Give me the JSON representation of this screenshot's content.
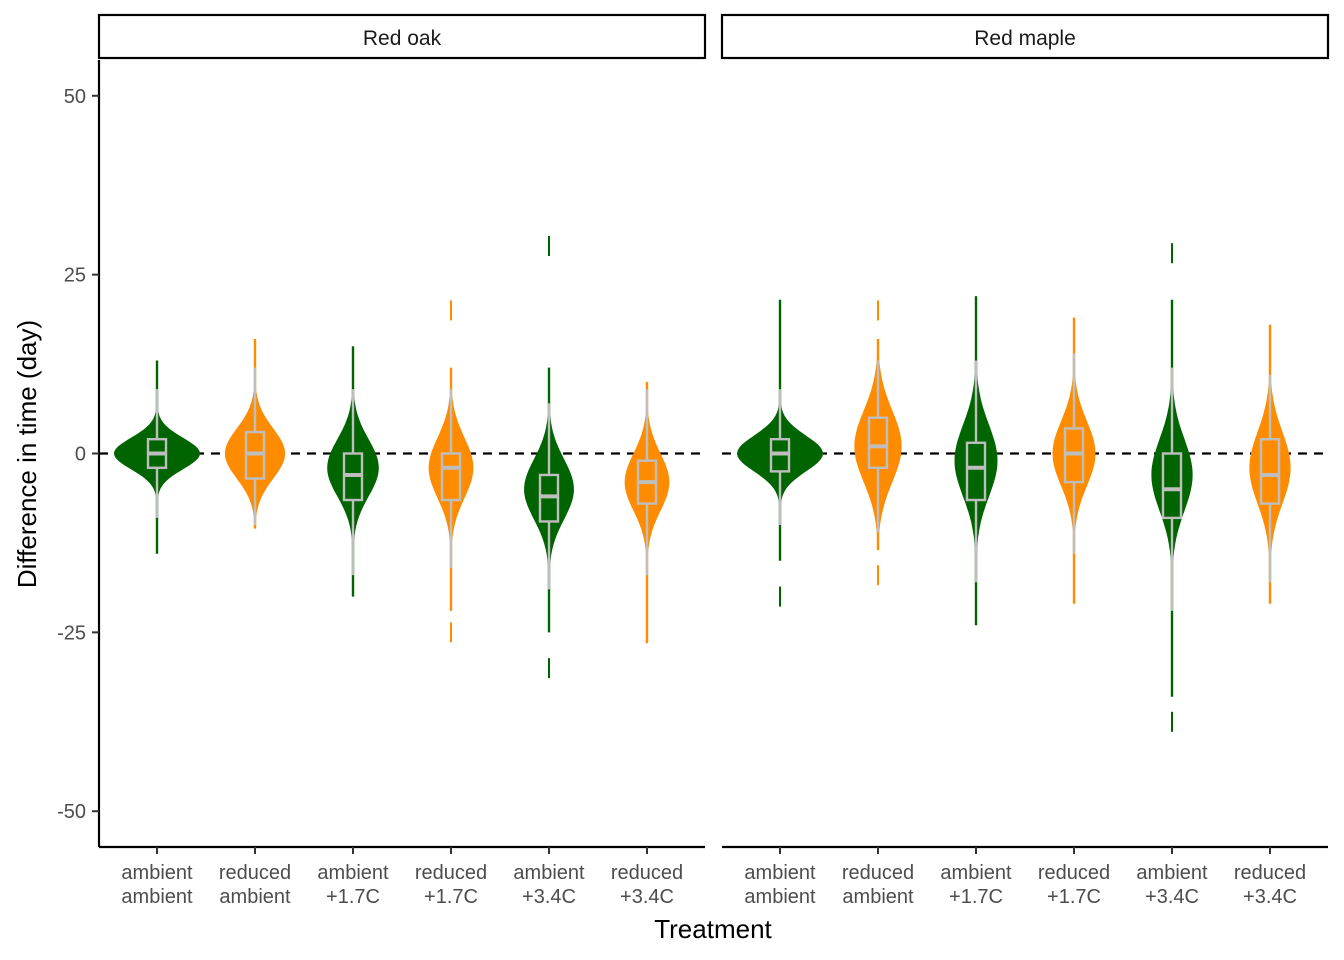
{
  "chart_data": {
    "type": "violin",
    "xlabel": "Treatment",
    "ylabel": "Difference in time (day)",
    "ylim": [
      -55,
      55
    ],
    "yticks": [
      50,
      25,
      0,
      -25,
      -50
    ],
    "reference_line": 0,
    "categories": [
      {
        "line1": "ambient",
        "line2": "ambient"
      },
      {
        "line1": "reduced",
        "line2": "ambient"
      },
      {
        "line1": "ambient",
        "line2": "+1.7C"
      },
      {
        "line1": "reduced",
        "line2": "+1.7C"
      },
      {
        "line1": "ambient",
        "line2": "+3.4C"
      },
      {
        "line1": "reduced",
        "line2": "+3.4C"
      }
    ],
    "colors": {
      "ambient": "#006400",
      "reduced": "#ff8c00",
      "box": "#bebebe"
    },
    "panels": [
      {
        "title": "Red oak",
        "groups": [
          {
            "fill": "ambient",
            "min": -14,
            "max": 13,
            "q1": -2,
            "median": 0,
            "q3": 2,
            "whisker_low": -9,
            "whisker_high": 9,
            "mode": 0,
            "width": 1.0,
            "spread": 2.2,
            "outliers": []
          },
          {
            "fill": "reduced",
            "min": -10.5,
            "max": 16,
            "q1": -3.5,
            "median": 0,
            "q3": 3,
            "whisker_low": -10,
            "whisker_high": 12,
            "mode": 0,
            "width": 0.7,
            "spread": 3.5,
            "outliers": []
          },
          {
            "fill": "ambient",
            "min": -20,
            "max": 15,
            "q1": -6.5,
            "median": -3,
            "q3": 0,
            "whisker_low": -17,
            "whisker_high": 9,
            "mode": -2,
            "width": 0.6,
            "spread": 4.0,
            "outliers": []
          },
          {
            "fill": "reduced",
            "min": -22,
            "max": 12,
            "q1": -6.5,
            "median": -2,
            "q3": 0,
            "whisker_low": -16,
            "whisker_high": 9,
            "mode": -2,
            "width": 0.52,
            "spread": 4.2,
            "outliers": [
              20,
              -25
            ]
          },
          {
            "fill": "ambient",
            "min": -25,
            "max": 12,
            "q1": -9.5,
            "median": -6,
            "q3": -3,
            "whisker_low": -19,
            "whisker_high": 7,
            "mode": -5,
            "width": 0.58,
            "spread": 4.2,
            "outliers": [
              29,
              -30
            ]
          },
          {
            "fill": "reduced",
            "min": -26.5,
            "max": 10,
            "q1": -7,
            "median": -4,
            "q3": -1,
            "whisker_low": -17,
            "whisker_high": 9,
            "mode": -4,
            "width": 0.52,
            "spread": 4.0,
            "outliers": []
          }
        ]
      },
      {
        "title": "Red maple",
        "groups": [
          {
            "fill": "ambient",
            "min": -15,
            "max": 21.5,
            "q1": -2.5,
            "median": 0,
            "q3": 2,
            "whisker_low": -10,
            "whisker_high": 9,
            "mode": 0,
            "width": 1.0,
            "spread": 2.5,
            "outliers": [
              -20
            ]
          },
          {
            "fill": "reduced",
            "min": -13.5,
            "max": 16,
            "q1": -2,
            "median": 1,
            "q3": 5,
            "whisker_low": -11,
            "whisker_high": 13,
            "mode": 1,
            "width": 0.55,
            "spread": 5.0,
            "outliers": [
              20,
              -17
            ]
          },
          {
            "fill": "ambient",
            "min": -24,
            "max": 22,
            "q1": -6.5,
            "median": -2,
            "q3": 1.5,
            "whisker_low": -18,
            "whisker_high": 13,
            "mode": -1,
            "width": 0.5,
            "spread": 5.0,
            "outliers": []
          },
          {
            "fill": "reduced",
            "min": -21,
            "max": 19,
            "q1": -4,
            "median": 0,
            "q3": 3.5,
            "whisker_low": -14,
            "whisker_high": 14,
            "mode": 0,
            "width": 0.5,
            "spread": 4.5,
            "outliers": []
          },
          {
            "fill": "ambient",
            "min": -34,
            "max": 21.5,
            "q1": -9,
            "median": -5,
            "q3": 0,
            "whisker_low": -22,
            "whisker_high": 12,
            "mode": -3,
            "width": 0.48,
            "spread": 5.0,
            "outliers": [
              28,
              -37.5
            ]
          },
          {
            "fill": "reduced",
            "min": -21,
            "max": 18,
            "q1": -7,
            "median": -3,
            "q3": 2,
            "whisker_low": -18,
            "whisker_high": 11,
            "mode": -2,
            "width": 0.48,
            "spread": 5.0,
            "outliers": []
          }
        ]
      }
    ]
  }
}
